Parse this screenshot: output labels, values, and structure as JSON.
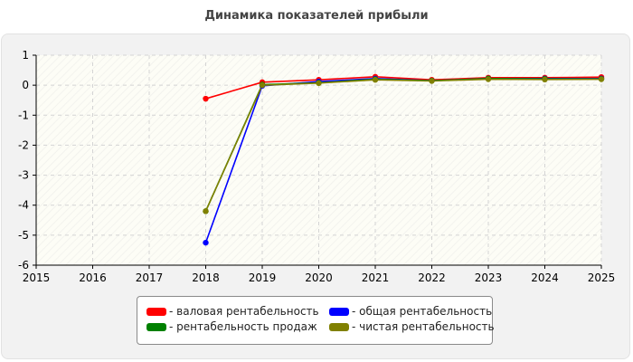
{
  "chart_data": {
    "type": "line",
    "title": "Динамика показателей прибыли",
    "xlabel": "",
    "ylabel": "",
    "x": [
      2015,
      2016,
      2017,
      2018,
      2019,
      2020,
      2021,
      2022,
      2023,
      2024,
      2025
    ],
    "xlim": [
      2015,
      2025
    ],
    "ylim": [
      -6,
      1
    ],
    "y_ticks": [
      1,
      0,
      -1,
      -2,
      -3,
      -4,
      -5,
      -6
    ],
    "grid": true,
    "legend_position": "bottom",
    "series": [
      {
        "name": "- валовая рентабельность",
        "color": "#ff0000",
        "values": [
          null,
          null,
          null,
          -0.45,
          0.1,
          0.18,
          0.28,
          0.18,
          0.25,
          0.25,
          0.27
        ]
      },
      {
        "name": "- общая рентабельность",
        "color": "#0000ff",
        "values": [
          null,
          null,
          null,
          -5.25,
          -0.02,
          0.12,
          0.22,
          0.15,
          0.22,
          0.22,
          0.22
        ]
      },
      {
        "name": "- рентабельность продаж",
        "color": "#008000",
        "values": [
          null,
          null,
          null,
          -4.2,
          0.02,
          0.08,
          0.2,
          0.15,
          0.22,
          0.21,
          0.21
        ]
      },
      {
        "name": "- чистая рентабельность",
        "color": "#808000",
        "values": [
          null,
          null,
          null,
          -4.2,
          0.0,
          0.07,
          0.18,
          0.14,
          0.2,
          0.19,
          0.2
        ]
      }
    ]
  }
}
